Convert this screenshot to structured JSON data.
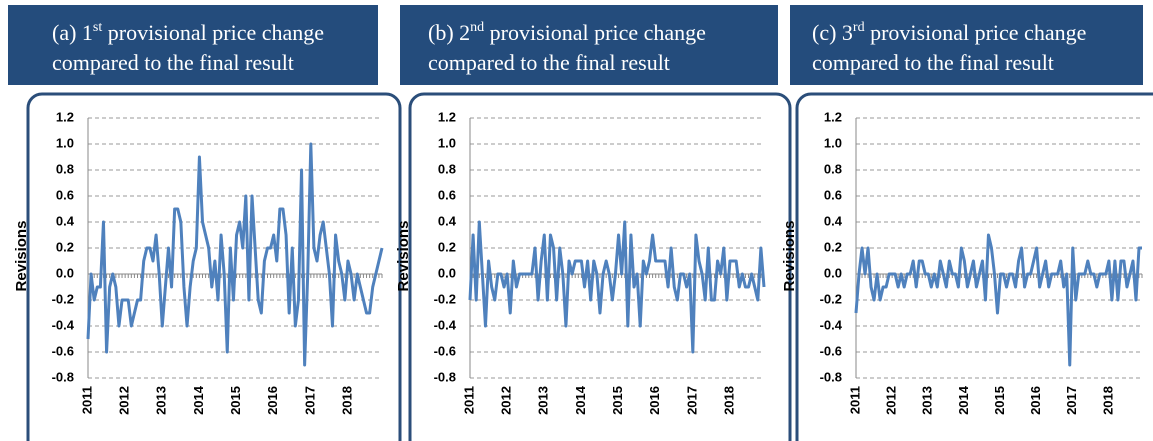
{
  "chart_data": [
    {
      "type": "line",
      "title": {
        "lead": "(a) 1",
        "sup": "st",
        "rest": " provisional price change",
        "line2": "compared to the final result"
      },
      "y_label": "Revisions",
      "categories": [
        "2011",
        null,
        null,
        null,
        null,
        null,
        null,
        null,
        null,
        null,
        null,
        null,
        "2012",
        null,
        null,
        null,
        null,
        null,
        null,
        null,
        null,
        null,
        null,
        null,
        "2013",
        null,
        null,
        null,
        null,
        null,
        null,
        null,
        null,
        null,
        null,
        null,
        "2014",
        null,
        null,
        null,
        null,
        null,
        null,
        null,
        null,
        null,
        null,
        null,
        "2015",
        null,
        null,
        null,
        null,
        null,
        null,
        null,
        null,
        null,
        null,
        null,
        "2016",
        null,
        null,
        null,
        null,
        null,
        null,
        null,
        null,
        null,
        null,
        null,
        "2017",
        null,
        null,
        null,
        null,
        null,
        null,
        null,
        null,
        null,
        null,
        null,
        "2018",
        null,
        null,
        null,
        null,
        null,
        null,
        null,
        null,
        null,
        null,
        null
      ],
      "series": [
        {
          "color": "#4f81bd",
          "values": [
            -0.5,
            0,
            -0.2,
            -0.1,
            -0.1,
            0.4,
            -0.6,
            -0.1,
            0,
            -0.1,
            -0.4,
            -0.2,
            -0.2,
            -0.2,
            -0.4,
            -0.3,
            -0.2,
            -0.2,
            0.1,
            0.2,
            0.2,
            0.1,
            0.3,
            0,
            -0.4,
            -0.1,
            0.2,
            -0.1,
            0.5,
            0.5,
            0.4,
            -0.1,
            -0.4,
            -0.1,
            0.1,
            0.2,
            0.9,
            0.4,
            0.3,
            0.2,
            -0.1,
            0.1,
            -0.2,
            0.3,
            0,
            -0.6,
            0.2,
            -0.2,
            0.3,
            0.4,
            0.2,
            0.6,
            -0.2,
            0.6,
            0.2,
            -0.2,
            -0.3,
            0.1,
            0.2,
            0.2,
            0.3,
            0.1,
            0.5,
            0.5,
            0.3,
            -0.3,
            0.2,
            -0.4,
            -0.2,
            0.8,
            -0.7,
            0,
            1.0,
            0.2,
            0.1,
            0.3,
            0.4,
            0.2,
            0,
            -0.4,
            0.3,
            0.1,
            0,
            -0.2,
            0.1,
            0,
            -0.2,
            0,
            -0.1,
            -0.2,
            -0.3,
            -0.3,
            -0.1,
            0,
            0.1,
            0.2
          ]
        }
      ],
      "ylim": [
        -0.8,
        1.2
      ],
      "yticks": [
        -0.8,
        -0.6,
        -0.4,
        -0.2,
        {
          "value": 0,
          "label": "0.0"
        },
        0.2,
        0.4,
        0.6,
        0.8,
        {
          "value": 1,
          "label": "1.0"
        },
        1.2
      ],
      "grid": true
    },
    {
      "type": "line",
      "title": {
        "lead": "(b) 2",
        "sup": "nd",
        "rest": " provisional price change",
        "line2": "compared to the final result"
      },
      "y_label": "Revisions",
      "categories": [
        "2011",
        null,
        null,
        null,
        null,
        null,
        null,
        null,
        null,
        null,
        null,
        null,
        "2012",
        null,
        null,
        null,
        null,
        null,
        null,
        null,
        null,
        null,
        null,
        null,
        "2013",
        null,
        null,
        null,
        null,
        null,
        null,
        null,
        null,
        null,
        null,
        null,
        "2014",
        null,
        null,
        null,
        null,
        null,
        null,
        null,
        null,
        null,
        null,
        null,
        "2015",
        null,
        null,
        null,
        null,
        null,
        null,
        null,
        null,
        null,
        null,
        null,
        "2016",
        null,
        null,
        null,
        null,
        null,
        null,
        null,
        null,
        null,
        null,
        null,
        "2017",
        null,
        null,
        null,
        null,
        null,
        null,
        null,
        null,
        null,
        null,
        null,
        "2018",
        null,
        null,
        null,
        null,
        null,
        null,
        null,
        null,
        null,
        null,
        null
      ],
      "series": [
        {
          "color": "#4f81bd",
          "values": [
            -0.2,
            0.3,
            -0.2,
            0.4,
            0,
            -0.4,
            0.1,
            -0.1,
            -0.2,
            0,
            0,
            -0.1,
            0,
            -0.3,
            0.1,
            -0.1,
            0,
            0,
            0,
            0,
            0,
            0.2,
            -0.2,
            0.1,
            0.3,
            -0.2,
            0.3,
            0.2,
            -0.2,
            0.2,
            0,
            -0.4,
            0.1,
            0,
            0.1,
            0.1,
            0.1,
            -0.1,
            0.1,
            -0.2,
            0.1,
            0,
            -0.3,
            0,
            0.1,
            0,
            -0.2,
            0,
            0.3,
            0,
            0.4,
            -0.4,
            0.3,
            -0.1,
            0,
            -0.4,
            0.1,
            0,
            0.1,
            0.3,
            0.1,
            0.1,
            0.1,
            0.1,
            -0.1,
            0.2,
            -0.1,
            -0.2,
            0,
            0,
            -0.1,
            0,
            -0.6,
            0.3,
            0.1,
            0,
            -0.2,
            0.2,
            -0.2,
            -0.2,
            0.1,
            0,
            0.2,
            -0.2,
            0.1,
            0.1,
            0.1,
            -0.1,
            0,
            -0.1,
            -0.1,
            0,
            -0.1,
            -0.2,
            0.2,
            -0.1
          ]
        }
      ],
      "ylim": [
        -0.8,
        1.2
      ],
      "yticks": [
        -0.8,
        -0.6,
        -0.4,
        -0.2,
        {
          "value": 0,
          "label": "0.0"
        },
        0.2,
        0.4,
        0.6,
        0.8,
        {
          "value": 1,
          "label": "1.0"
        },
        1.2
      ],
      "grid": true
    },
    {
      "type": "line",
      "title": {
        "lead": "(c) 3",
        "sup": "rd",
        "rest": " provisional price change",
        "line2": "compared to the final result"
      },
      "y_label": "Revisions",
      "categories": [
        "2011",
        null,
        null,
        null,
        null,
        null,
        null,
        null,
        null,
        null,
        null,
        null,
        "2012",
        null,
        null,
        null,
        null,
        null,
        null,
        null,
        null,
        null,
        null,
        null,
        "2013",
        null,
        null,
        null,
        null,
        null,
        null,
        null,
        null,
        null,
        null,
        null,
        "2014",
        null,
        null,
        null,
        null,
        null,
        null,
        null,
        null,
        null,
        null,
        null,
        "2015",
        null,
        null,
        null,
        null,
        null,
        null,
        null,
        null,
        null,
        null,
        null,
        "2016",
        null,
        null,
        null,
        null,
        null,
        null,
        null,
        null,
        null,
        null,
        null,
        "2017",
        null,
        null,
        null,
        null,
        null,
        null,
        null,
        null,
        null,
        null,
        null,
        "2018",
        null,
        null,
        null,
        null,
        null,
        null,
        null,
        null,
        null,
        null,
        null
      ],
      "series": [
        {
          "color": "#4f81bd",
          "values": [
            -0.3,
            0,
            0.2,
            0,
            0.2,
            -0.1,
            -0.2,
            0,
            -0.2,
            -0.1,
            -0.1,
            0,
            0,
            0,
            -0.1,
            0,
            -0.1,
            0,
            0,
            0.1,
            -0.1,
            0.1,
            0.1,
            0,
            0,
            -0.1,
            0,
            -0.1,
            0.1,
            0,
            -0.1,
            0.1,
            0,
            0,
            -0.1,
            0.2,
            0.1,
            -0.1,
            0,
            0.1,
            -0.1,
            0,
            0.1,
            -0.2,
            0.3,
            0.2,
            0,
            -0.3,
            0,
            0,
            -0.1,
            0,
            0,
            -0.1,
            0.1,
            0.2,
            -0.1,
            0,
            0,
            0.1,
            0.2,
            -0.1,
            0,
            0.1,
            -0.1,
            0,
            0,
            0,
            0.1,
            -0.1,
            0,
            -0.7,
            0.2,
            -0.2,
            0,
            0,
            0,
            0.1,
            0,
            0,
            -0.1,
            0,
            0,
            0,
            0.1,
            -0.2,
            0.1,
            -0.2,
            0.1,
            0.1,
            -0.1,
            0,
            0.1,
            -0.2,
            0.2,
            0.2
          ]
        }
      ],
      "ylim": [
        -0.8,
        1.2
      ],
      "yticks": [
        -0.8,
        -0.6,
        -0.4,
        -0.2,
        {
          "value": 0,
          "label": "0.0"
        },
        0.2,
        0.4,
        0.6,
        0.8,
        {
          "value": 1,
          "label": "1.0"
        },
        1.2
      ],
      "grid": true
    }
  ]
}
